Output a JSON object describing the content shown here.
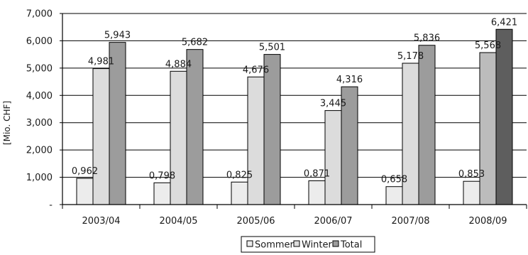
{
  "chart_data": {
    "type": "bar",
    "categories": [
      "2003/04",
      "2004/05",
      "2005/06",
      "2006/07",
      "2007/08",
      "2008/09"
    ],
    "series": [
      {
        "name": "Sommer",
        "values": [
          0.962,
          0.798,
          0.825,
          0.871,
          0.658,
          0.853
        ],
        "labels": [
          "0,962",
          "0,798",
          "0,825",
          "0,871",
          "0,658",
          "0,853"
        ]
      },
      {
        "name": "Winter",
        "values": [
          4.981,
          4.884,
          4.676,
          3.445,
          5.178,
          5.568
        ],
        "labels": [
          "4,981",
          "4,884",
          "4,676",
          "3,445",
          "5,178",
          "5,568"
        ]
      },
      {
        "name": "Total",
        "values": [
          5.943,
          5.682,
          5.501,
          4.316,
          5.836,
          6.421
        ],
        "labels": [
          "5,943",
          "5,682",
          "5,501",
          "4,316",
          "5,836",
          "6,421"
        ]
      }
    ],
    "ylabel": "[Mio. CHF]",
    "ylim": [
      0,
      7
    ],
    "yticks": [
      0,
      1,
      2,
      3,
      4,
      5,
      6,
      7
    ],
    "ytick_labels": [
      "-",
      "1,000",
      "2,000",
      "3,000",
      "4,000",
      "5,000",
      "6,000",
      "7,000"
    ],
    "grid": true,
    "legend_position": "bottom-center",
    "colors": {
      "sommer": "#ececec",
      "winter": "#dcdcdc",
      "total": "#9c9c9c",
      "winter_last": "#bcbcbc",
      "total_last": "#5e5e5e"
    }
  }
}
